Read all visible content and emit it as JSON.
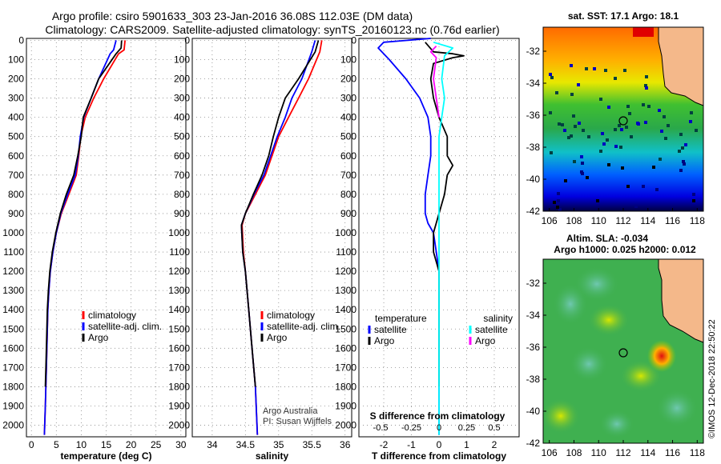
{
  "titles": {
    "line1": "Argo profile: csiro 5901633_303 23-Jan-2016 36.08S 112.03E (DM data)",
    "line2": "Climatology: CARS2009. Satellite-adjusted climatology: synTS_20160123.nc (0.76d earlier)"
  },
  "colors": {
    "climatology": "#ff0000",
    "satellite": "#0000ff",
    "argo": "#000000",
    "sat_salinity": "#00ffff",
    "argo_salinity": "#ff00ff"
  },
  "chart_data": [
    {
      "name": "temperature",
      "type": "line",
      "xlabel": "temperature (deg C)",
      "ylabel": "",
      "xlim": [
        -1,
        31
      ],
      "ylim": [
        2060,
        -10
      ],
      "xticks": [
        0,
        5,
        10,
        15,
        20,
        25,
        30
      ],
      "yticks": [
        0,
        100,
        200,
        300,
        400,
        500,
        600,
        700,
        800,
        900,
        1000,
        1100,
        1200,
        1300,
        1400,
        1500,
        1600,
        1700,
        1800,
        1900,
        2000
      ],
      "legend": [
        "climatology",
        "satellite-adj. clim.",
        "Argo"
      ],
      "series": [
        {
          "name": "climatology",
          "color": "#ff0000",
          "points": [
            [
              18.8,
              0
            ],
            [
              18.6,
              50
            ],
            [
              17.5,
              70
            ],
            [
              14.5,
              200
            ],
            [
              12.5,
              300
            ],
            [
              10.8,
              400
            ],
            [
              9.9,
              500
            ],
            [
              9.5,
              600
            ],
            [
              9.0,
              700
            ],
            [
              7.5,
              800
            ],
            [
              6.0,
              900
            ],
            [
              5.0,
              1000
            ],
            [
              4.3,
              1100
            ],
            [
              3.8,
              1200
            ],
            [
              3.5,
              1300
            ],
            [
              3.3,
              1400
            ],
            [
              3.2,
              1500
            ],
            [
              3.0,
              1700
            ],
            [
              2.8,
              1900
            ],
            [
              2.6,
              2050
            ]
          ]
        },
        {
          "name": "satellite-adj. clim.",
          "color": "#0000ff",
          "points": [
            [
              17.0,
              0
            ],
            [
              16.5,
              50
            ],
            [
              15.8,
              70
            ],
            [
              13.5,
              200
            ],
            [
              12.0,
              300
            ],
            [
              10.5,
              400
            ],
            [
              9.8,
              500
            ],
            [
              9.4,
              600
            ],
            [
              8.8,
              700
            ],
            [
              7.3,
              800
            ],
            [
              5.9,
              900
            ],
            [
              5.0,
              1000
            ],
            [
              4.3,
              1100
            ],
            [
              3.8,
              1200
            ],
            [
              3.5,
              1300
            ],
            [
              3.3,
              1400
            ],
            [
              3.2,
              1500
            ],
            [
              3.0,
              1700
            ],
            [
              2.8,
              1900
            ],
            [
              2.6,
              2050
            ]
          ]
        },
        {
          "name": "Argo",
          "color": "#000000",
          "points": [
            [
              18.1,
              0
            ],
            [
              18.0,
              40
            ],
            [
              17.0,
              70
            ],
            [
              13.5,
              200
            ],
            [
              12.0,
              300
            ],
            [
              10.4,
              400
            ],
            [
              10.0,
              500
            ],
            [
              9.3,
              600
            ],
            [
              8.5,
              700
            ],
            [
              7.0,
              800
            ],
            [
              5.8,
              900
            ],
            [
              4.9,
              1000
            ],
            [
              4.2,
              1100
            ],
            [
              3.7,
              1200
            ],
            [
              3.4,
              1300
            ],
            [
              3.2,
              1400
            ],
            [
              3.1,
              1500
            ],
            [
              2.9,
              1700
            ],
            [
              2.8,
              1800
            ]
          ]
        }
      ]
    },
    {
      "name": "salinity",
      "type": "line",
      "xlabel": "salinity",
      "ylabel": "",
      "xlim": [
        33.7,
        36.1
      ],
      "ylim": [
        2060,
        -10
      ],
      "xticks": [
        34,
        34.5,
        35,
        35.5,
        36
      ],
      "yticks": [
        0,
        100,
        200,
        300,
        400,
        500,
        600,
        700,
        800,
        900,
        1000,
        1100,
        1200,
        1300,
        1400,
        1500,
        1600,
        1700,
        1800,
        1900,
        2000
      ],
      "legend": [
        "climatology",
        "satellite-adj. clim.",
        "Argo"
      ],
      "annotation": [
        "Argo Australia",
        "PI: Susan Wijffels"
      ],
      "series": [
        {
          "name": "climatology",
          "color": "#ff0000",
          "points": [
            [
              35.65,
              0
            ],
            [
              35.62,
              60
            ],
            [
              35.45,
              200
            ],
            [
              35.3,
              300
            ],
            [
              35.15,
              400
            ],
            [
              35.0,
              500
            ],
            [
              34.9,
              600
            ],
            [
              34.8,
              700
            ],
            [
              34.65,
              800
            ],
            [
              34.5,
              900
            ],
            [
              34.45,
              960
            ],
            [
              34.47,
              1100
            ],
            [
              34.5,
              1200
            ],
            [
              34.55,
              1400
            ],
            [
              34.6,
              1600
            ],
            [
              34.65,
              1800
            ],
            [
              34.68,
              2050
            ]
          ]
        },
        {
          "name": "satellite-adj. clim.",
          "color": "#0000ff",
          "points": [
            [
              35.55,
              0
            ],
            [
              35.5,
              60
            ],
            [
              35.35,
              200
            ],
            [
              35.2,
              300
            ],
            [
              35.1,
              400
            ],
            [
              34.98,
              500
            ],
            [
              34.88,
              600
            ],
            [
              34.78,
              700
            ],
            [
              34.63,
              800
            ],
            [
              34.5,
              900
            ],
            [
              34.44,
              960
            ],
            [
              34.46,
              1100
            ],
            [
              34.5,
              1200
            ],
            [
              34.55,
              1400
            ],
            [
              34.6,
              1600
            ],
            [
              34.65,
              1800
            ],
            [
              34.68,
              2050
            ]
          ]
        },
        {
          "name": "Argo",
          "color": "#000000",
          "points": [
            [
              35.6,
              0
            ],
            [
              35.55,
              60
            ],
            [
              35.3,
              200
            ],
            [
              35.1,
              300
            ],
            [
              35.0,
              400
            ],
            [
              34.92,
              500
            ],
            [
              34.85,
              600
            ],
            [
              34.75,
              700
            ],
            [
              34.62,
              800
            ],
            [
              34.5,
              900
            ],
            [
              34.44,
              960
            ],
            [
              34.46,
              1100
            ],
            [
              34.5,
              1200
            ],
            [
              34.55,
              1400
            ],
            [
              34.6,
              1600
            ],
            [
              34.65,
              1800
            ]
          ]
        }
      ]
    },
    {
      "name": "differences",
      "type": "line",
      "xlabel": "T difference from climatology",
      "xlabel_top": "S difference from climatology",
      "ylabel": "",
      "xlim": [
        -2.9,
        2.9
      ],
      "ylim": [
        2060,
        -10
      ],
      "xticks": [
        -2,
        -1,
        0,
        1,
        2
      ],
      "xticks_top_labels": [
        "-0.5",
        "-0.25",
        "0",
        "0.25",
        "0.5"
      ],
      "yticks": [
        0,
        100,
        200,
        300,
        400,
        500,
        600,
        700,
        800,
        900,
        1000,
        1100,
        1200,
        1300,
        1400,
        1500,
        1600,
        1700,
        1800,
        1900,
        2000
      ],
      "legend_left_title": "temperature",
      "legend_left": [
        "satellite",
        "Argo"
      ],
      "legend_right_title": "salinity",
      "legend_right": [
        "satellite",
        "Argo"
      ],
      "series": [
        {
          "name": "T satellite",
          "color": "#0000ff",
          "points": [
            [
              -0.3,
              -10
            ],
            [
              -2.0,
              10
            ],
            [
              -2.2,
              40
            ],
            [
              -1.8,
              100
            ],
            [
              -1.2,
              200
            ],
            [
              -0.7,
              300
            ],
            [
              -0.4,
              400
            ],
            [
              -0.3,
              500
            ],
            [
              -0.3,
              600
            ],
            [
              -0.4,
              700
            ],
            [
              -0.5,
              800
            ],
            [
              -0.5,
              900
            ],
            [
              -0.4,
              950
            ],
            [
              -0.2,
              1000
            ],
            [
              -0.1,
              1100
            ],
            [
              0,
              1200
            ],
            [
              0,
              2050
            ]
          ]
        },
        {
          "name": "T Argo",
          "color": "#000000",
          "points": [
            [
              -0.5,
              10
            ],
            [
              -0.2,
              60
            ],
            [
              0.5,
              70
            ],
            [
              0.9,
              80
            ],
            [
              0.5,
              90
            ],
            [
              -0.2,
              120
            ],
            [
              -0.3,
              200
            ],
            [
              -0.2,
              300
            ],
            [
              0.0,
              400
            ],
            [
              0.3,
              500
            ],
            [
              0.3,
              600
            ],
            [
              0.5,
              650
            ],
            [
              0.3,
              700
            ],
            [
              0.2,
              800
            ],
            [
              0.0,
              900
            ],
            [
              -0.2,
              1000
            ],
            [
              -0.2,
              1100
            ],
            [
              0,
              1200
            ],
            [
              0,
              1800
            ]
          ]
        },
        {
          "name": "S satellite",
          "color": "#00ffff",
          "points": [
            [
              -0.2,
              10
            ],
            [
              0.5,
              40
            ],
            [
              0.2,
              80
            ],
            [
              0.1,
              200
            ],
            [
              0.2,
              300
            ],
            [
              0.1,
              400
            ],
            [
              0.0,
              500
            ],
            [
              0.0,
              700
            ],
            [
              0.0,
              900
            ],
            [
              0.0,
              1100
            ],
            [
              0.0,
              2050
            ]
          ]
        },
        {
          "name": "S Argo",
          "color": "#ff00ff",
          "points": [
            [
              -0.1,
              30
            ],
            [
              -0.3,
              60
            ],
            [
              -0.1,
              90
            ],
            [
              -0.2,
              200
            ],
            [
              -0.1,
              300
            ],
            [
              0.0,
              400
            ]
          ]
        }
      ]
    },
    {
      "name": "sst_map",
      "type": "heatmap",
      "title": "sat. SST: 17.1 Argo: 18.1",
      "xlim": [
        105.5,
        118.5
      ],
      "ylim": [
        -42,
        -30.5
      ],
      "xticks": [
        106,
        108,
        110,
        112,
        114,
        116,
        118
      ],
      "yticks": [
        -32,
        -34,
        -36,
        -38,
        -40,
        -42
      ],
      "float_marker": [
        112.03,
        -36.08
      ]
    },
    {
      "name": "sla_map",
      "type": "heatmap",
      "title": "Altim. SLA: -0.034",
      "subtitle": "Argo h1000: 0.025 h2000: 0.012",
      "xlim": [
        105.5,
        118.5
      ],
      "ylim": [
        -42,
        -30.5
      ],
      "xticks": [
        106,
        108,
        110,
        112,
        114,
        116,
        118
      ],
      "yticks": [
        -32,
        -34,
        -36,
        -38,
        -40,
        -42
      ],
      "float_marker": [
        112.03,
        -36.08
      ]
    }
  ],
  "credit": "©IMOS 12-Dec-2018 22:50:22"
}
